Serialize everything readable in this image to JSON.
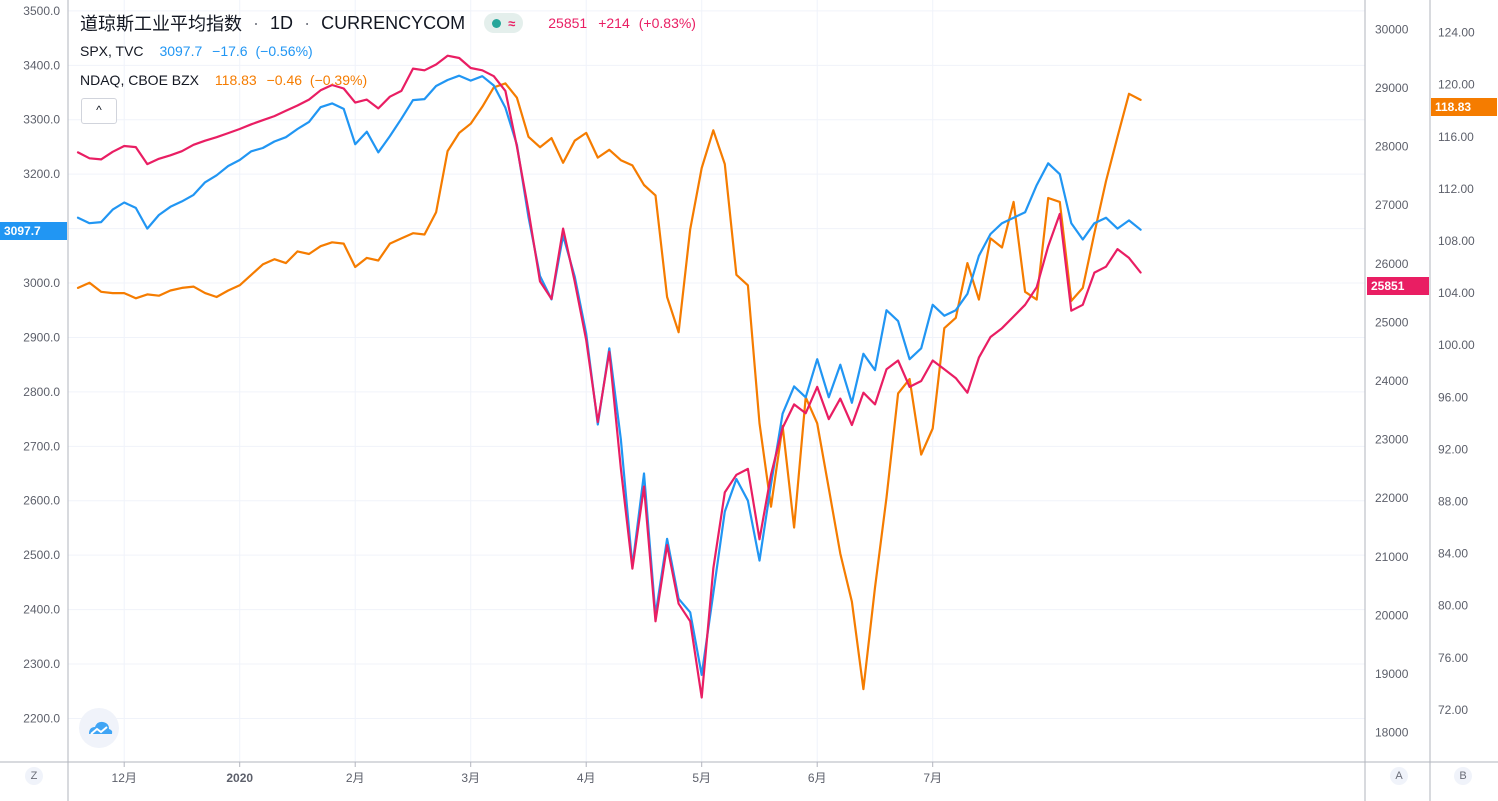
{
  "colors": {
    "dji": "#e91e63",
    "spx": "#2196f3",
    "ndaq": "#f57c00",
    "grid": "#f0f3fa",
    "axis_text": "#5d606b",
    "border": "#b2b5be"
  },
  "legend": {
    "main": {
      "title": "道琼斯工业平均指数",
      "sep1": "·",
      "interval": "1D",
      "sep2": "·",
      "source": "CURRENCYCOM",
      "live_icon": "≈",
      "last": "25851",
      "change": "+214",
      "change_pct": "(+0.83%)"
    },
    "spx": {
      "name": "SPX, TVC",
      "last": "3097.7",
      "change": "−17.6",
      "change_pct": "(−0.56%)"
    },
    "ndaq": {
      "name": "NDAQ, CBOE BZX",
      "last": "118.83",
      "change": "−0.46",
      "change_pct": "(−0.39%)"
    },
    "collapse_icon": "chevron-up-icon",
    "collapse_symbol": "^"
  },
  "price_labels": {
    "spx": "3097.7",
    "dji": "25851",
    "ndaq": "118.83"
  },
  "bottom_buttons": {
    "left": "Z",
    "auto": "A",
    "log": "B"
  },
  "chart_data": {
    "type": "line",
    "title": "道琼斯工业平均指数 · 1D · CURRENCYCOM",
    "x_axis": {
      "ticks": [
        {
          "label": "12月",
          "idx": 4,
          "bold": false
        },
        {
          "label": "2020",
          "idx": 14,
          "bold": true
        },
        {
          "label": "2月",
          "idx": 24,
          "bold": false
        },
        {
          "label": "3月",
          "idx": 34,
          "bold": false
        },
        {
          "label": "4月",
          "idx": 44,
          "bold": false
        },
        {
          "label": "5月",
          "idx": 54,
          "bold": false
        },
        {
          "label": "6月",
          "idx": 64,
          "bold": false
        },
        {
          "label": "7月",
          "idx": 74,
          "bold": false
        }
      ]
    },
    "left_axis": {
      "series": "SPX",
      "range": [
        2120,
        3520
      ],
      "ticks": [
        "3500.0",
        "3400.0",
        "3300.0",
        "3200.0",
        "3100.0",
        "3000.0",
        "2900.0",
        "2800.0",
        "2700.0",
        "2600.0",
        "2500.0",
        "2400.0",
        "2300.0",
        "2200.0"
      ]
    },
    "right_axis_1": {
      "series": "DJI",
      "range": [
        17500,
        30500
      ],
      "ticks": [
        "30000",
        "29000",
        "28000",
        "27000",
        "26000",
        "25000",
        "24000",
        "23000",
        "22000",
        "21000",
        "20000",
        "19000",
        "18000"
      ]
    },
    "right_axis_2": {
      "series": "NDAQ",
      "range": [
        68.0,
        126.5
      ],
      "ticks": [
        "124.00",
        "120.00",
        "116.00",
        "112.00",
        "108.00",
        "104.00",
        "100.00",
        "96.00",
        "92.00",
        "88.00",
        "84.00",
        "80.00",
        "76.00",
        "72.00"
      ]
    },
    "series": [
      {
        "name": "SPX, TVC",
        "axis": "left",
        "color": "#2196f3",
        "values": [
          3120,
          3110,
          3112,
          3135,
          3148,
          3138,
          3100,
          3125,
          3140,
          3150,
          3162,
          3185,
          3198,
          3215,
          3226,
          3242,
          3248,
          3260,
          3268,
          3283,
          3296,
          3323,
          3330,
          3320,
          3255,
          3278,
          3240,
          3270,
          3302,
          3336,
          3338,
          3362,
          3373,
          3381,
          3372,
          3380,
          3363,
          3322,
          3254,
          3121,
          3013,
          2970,
          3087,
          3012,
          2907,
          2740,
          2880,
          2712,
          2480,
          2650,
          2390,
          2530,
          2420,
          2395,
          2280,
          2430,
          2580,
          2640,
          2600,
          2490,
          2630,
          2760,
          2810,
          2790,
          2860,
          2790,
          2850,
          2780,
          2870,
          2840,
          2950,
          2930,
          2860,
          2880,
          2960,
          2940,
          2950,
          2980,
          3050,
          3090,
          3110,
          3120,
          3130,
          3180,
          3220,
          3200,
          3110,
          3080,
          3110,
          3120,
          3100,
          3115,
          3098
        ]
      },
      {
        "name": "道琼斯工业平均指数",
        "axis": "right1",
        "color": "#e91e63",
        "values": [
          27900,
          27800,
          27780,
          27910,
          28010,
          27990,
          27700,
          27790,
          27850,
          27920,
          28030,
          28100,
          28160,
          28230,
          28300,
          28380,
          28450,
          28520,
          28610,
          28700,
          28800,
          28960,
          29050,
          28990,
          28750,
          28800,
          28650,
          28850,
          28950,
          29330,
          29300,
          29400,
          29550,
          29510,
          29340,
          29300,
          29200,
          28950,
          28000,
          26900,
          25700,
          25400,
          26600,
          25700,
          24700,
          23300,
          24500,
          22500,
          20800,
          22200,
          19900,
          21200,
          20200,
          19900,
          18600,
          20800,
          22100,
          22400,
          22500,
          21300,
          22400,
          23200,
          23600,
          23450,
          23900,
          23350,
          23700,
          23250,
          23800,
          23600,
          24200,
          24350,
          23900,
          24000,
          24350,
          24200,
          24050,
          23800,
          24400,
          24750,
          24900,
          25100,
          25300,
          25600,
          26300,
          26850,
          25200,
          25300,
          25850,
          25950,
          26250,
          26100,
          25851
        ]
      },
      {
        "name": "NDAQ, CBOE BZX",
        "axis": "right2",
        "color": "#f57c00",
        "values": [
          104.4,
          104.8,
          104.1,
          104.0,
          104.0,
          103.6,
          103.9,
          103.8,
          104.2,
          104.4,
          104.5,
          104.0,
          103.7,
          104.2,
          104.6,
          105.4,
          106.2,
          106.6,
          106.3,
          107.2,
          107.0,
          107.6,
          107.9,
          107.8,
          106.0,
          106.7,
          106.5,
          107.8,
          108.2,
          108.6,
          108.5,
          110.2,
          114.9,
          116.3,
          117.0,
          118.3,
          119.8,
          120.1,
          119.0,
          116.0,
          115.2,
          115.9,
          114.0,
          115.7,
          116.3,
          114.4,
          115.0,
          114.2,
          113.8,
          112.3,
          111.5,
          103.7,
          101.0,
          108.9,
          113.6,
          116.5,
          113.9,
          105.4,
          104.6,
          94.0,
          87.6,
          93.8,
          86.0,
          96.0,
          94.0,
          89.0,
          84.0,
          80.3,
          73.6,
          81.4,
          88.3,
          96.3,
          97.4,
          91.6,
          93.6,
          101.3,
          102.1,
          106.3,
          103.5,
          108.2,
          107.5,
          111.0,
          104.1,
          103.5,
          111.3,
          111.0,
          103.4,
          104.4,
          108.6,
          112.6,
          116.0,
          119.3,
          118.83
        ]
      }
    ]
  }
}
